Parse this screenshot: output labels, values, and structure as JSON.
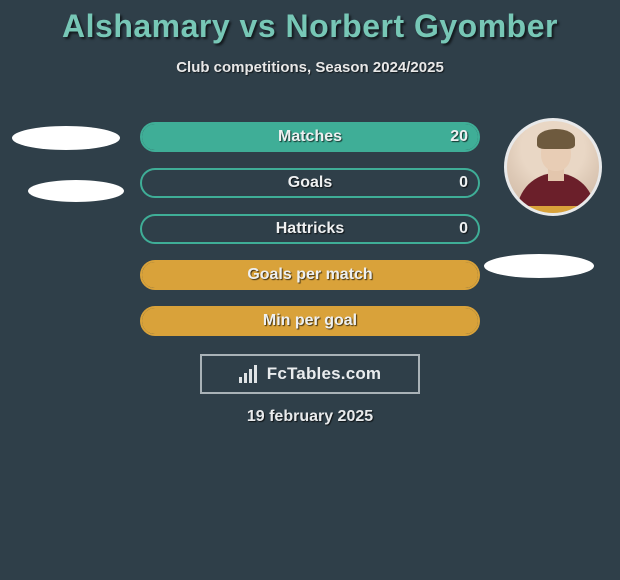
{
  "title": {
    "text": "Alshamary vs Norbert Gyomber",
    "color": "#77c7b6"
  },
  "subtitle": "Club competitions, Season 2024/2025",
  "colors": {
    "background": "#2f3f49",
    "bar_border_teal": "#3fae97",
    "bar_label": "#eef0f1",
    "yellow": "#d9a23a",
    "frame": "#a9b2b7"
  },
  "players": {
    "left": {
      "has_photo": false
    },
    "right": {
      "has_photo": true
    }
  },
  "bars": [
    {
      "label": "Matches",
      "left": "",
      "right": "20",
      "left_pct": 0,
      "right_pct": 100,
      "left_color": "#3fae97",
      "right_color": "#3fae97",
      "border_color": "#3fae97"
    },
    {
      "label": "Goals",
      "left": "",
      "right": "0",
      "left_pct": 0,
      "right_pct": 0,
      "left_color": "#3fae97",
      "right_color": "#3fae97",
      "border_color": "#3fae97"
    },
    {
      "label": "Hattricks",
      "left": "",
      "right": "0",
      "left_pct": 0,
      "right_pct": 0,
      "left_color": "#3fae97",
      "right_color": "#3fae97",
      "border_color": "#3fae97"
    },
    {
      "label": "Goals per match",
      "left": "",
      "right": "",
      "left_pct": 50,
      "right_pct": 50,
      "left_color": "#d9a23a",
      "right_color": "#d9a23a",
      "border_color": "#d9a23a"
    },
    {
      "label": "Min per goal",
      "left": "",
      "right": "",
      "left_pct": 50,
      "right_pct": 50,
      "left_color": "#d9a23a",
      "right_color": "#d9a23a",
      "border_color": "#d9a23a"
    }
  ],
  "brand": {
    "text": "FcTables.com"
  },
  "date": "19 february 2025"
}
